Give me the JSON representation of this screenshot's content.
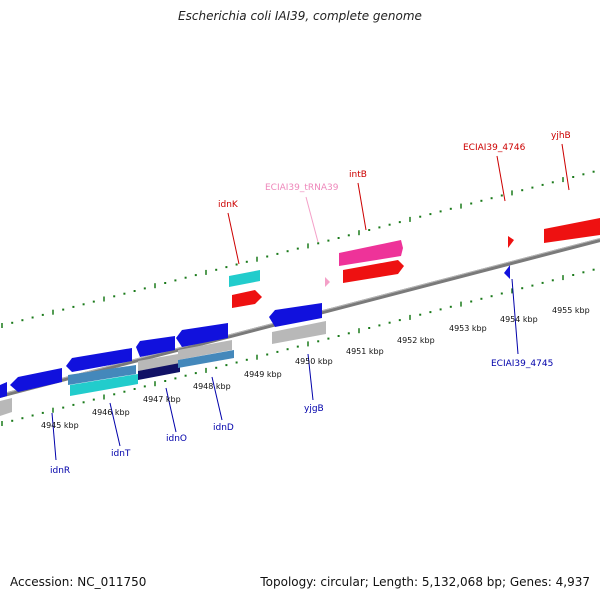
{
  "title": "Escherichia coli IAI39, complete genome",
  "footer": {
    "accession": "Accession: NC_011750",
    "summary": "Topology: circular; Length: 5,132,068 bp; Genes: 4,937"
  },
  "colors": {
    "backbone": "#808080",
    "tick": "#1a7a1a",
    "forward_gene": "#ee1111",
    "reverse_gene": "#1111dd",
    "trna": "#f4a0c8",
    "integrase": "#ee3399",
    "cyan_feature": "#22cccc",
    "grey_feature": "#b8b8b8",
    "label_forward": "#cc0000",
    "label_reverse": "#0000aa",
    "label_trna": "#ee88bb"
  },
  "scale_labels": [
    "4945 kbp",
    "4946 kbp",
    "4947 kbp",
    "4948 kbp",
    "4949 kbp",
    "4950 kbp",
    "4951 kbp",
    "4952 kbp",
    "4953 kbp",
    "4954 kbp",
    "4955 kbp"
  ],
  "top_labels": [
    {
      "text": "idnK",
      "kind": "forward"
    },
    {
      "text": "ECIAI39_tRNA39",
      "kind": "trna"
    },
    {
      "text": "intB",
      "kind": "forward"
    },
    {
      "text": "ECIAI39_4746",
      "kind": "forward"
    },
    {
      "text": "yjhB",
      "kind": "forward"
    }
  ],
  "bottom_labels": [
    {
      "text": "idnR",
      "kind": "reverse"
    },
    {
      "text": "idnT",
      "kind": "reverse"
    },
    {
      "text": "idnO",
      "kind": "reverse"
    },
    {
      "text": "idnD",
      "kind": "reverse"
    },
    {
      "text": "yjgB",
      "kind": "reverse"
    },
    {
      "text": "ECIAI39_4745",
      "kind": "reverse"
    }
  ]
}
